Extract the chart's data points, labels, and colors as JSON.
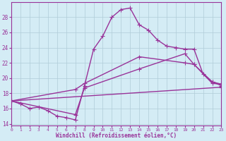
{
  "line1_x": [
    0,
    1,
    2,
    3,
    4,
    5,
    6,
    7,
    8,
    9,
    10,
    11,
    12,
    13,
    14,
    15,
    16,
    17,
    18,
    19,
    20,
    21,
    22,
    23
  ],
  "line1_y": [
    17.0,
    16.6,
    16.0,
    16.2,
    15.7,
    15.0,
    14.8,
    14.5,
    19.0,
    23.8,
    25.5,
    28.0,
    29.0,
    29.2,
    27.0,
    26.3,
    25.0,
    24.2,
    24.0,
    23.8,
    23.8,
    20.5,
    19.5,
    19.0
  ],
  "line2_x": [
    0,
    7,
    8,
    14,
    19,
    20,
    22,
    23
  ],
  "line2_y": [
    17.0,
    15.2,
    18.7,
    21.2,
    23.2,
    21.8,
    19.5,
    19.2
  ],
  "line3_x": [
    0,
    7,
    8,
    14,
    19,
    20,
    22,
    23
  ],
  "line3_y": [
    17.0,
    18.5,
    19.3,
    22.8,
    22.0,
    21.8,
    19.3,
    19.2
  ],
  "line4_x": [
    0,
    23
  ],
  "line4_y": [
    17.0,
    18.8
  ],
  "color": "#993399",
  "bg_color": "#d4ecf5",
  "grid_color": "#b0ccd8",
  "xlim": [
    0,
    23
  ],
  "ylim": [
    13.8,
    30.0
  ],
  "yticks": [
    14,
    16,
    18,
    20,
    22,
    24,
    26,
    28
  ],
  "xticks": [
    0,
    1,
    2,
    3,
    4,
    5,
    6,
    7,
    8,
    9,
    10,
    11,
    12,
    13,
    14,
    15,
    16,
    17,
    18,
    19,
    20,
    21,
    22,
    23
  ],
  "xlabel": "Windchill (Refroidissement éolien,°C)",
  "marker": "+",
  "markersize": 4,
  "linewidth": 1.0
}
